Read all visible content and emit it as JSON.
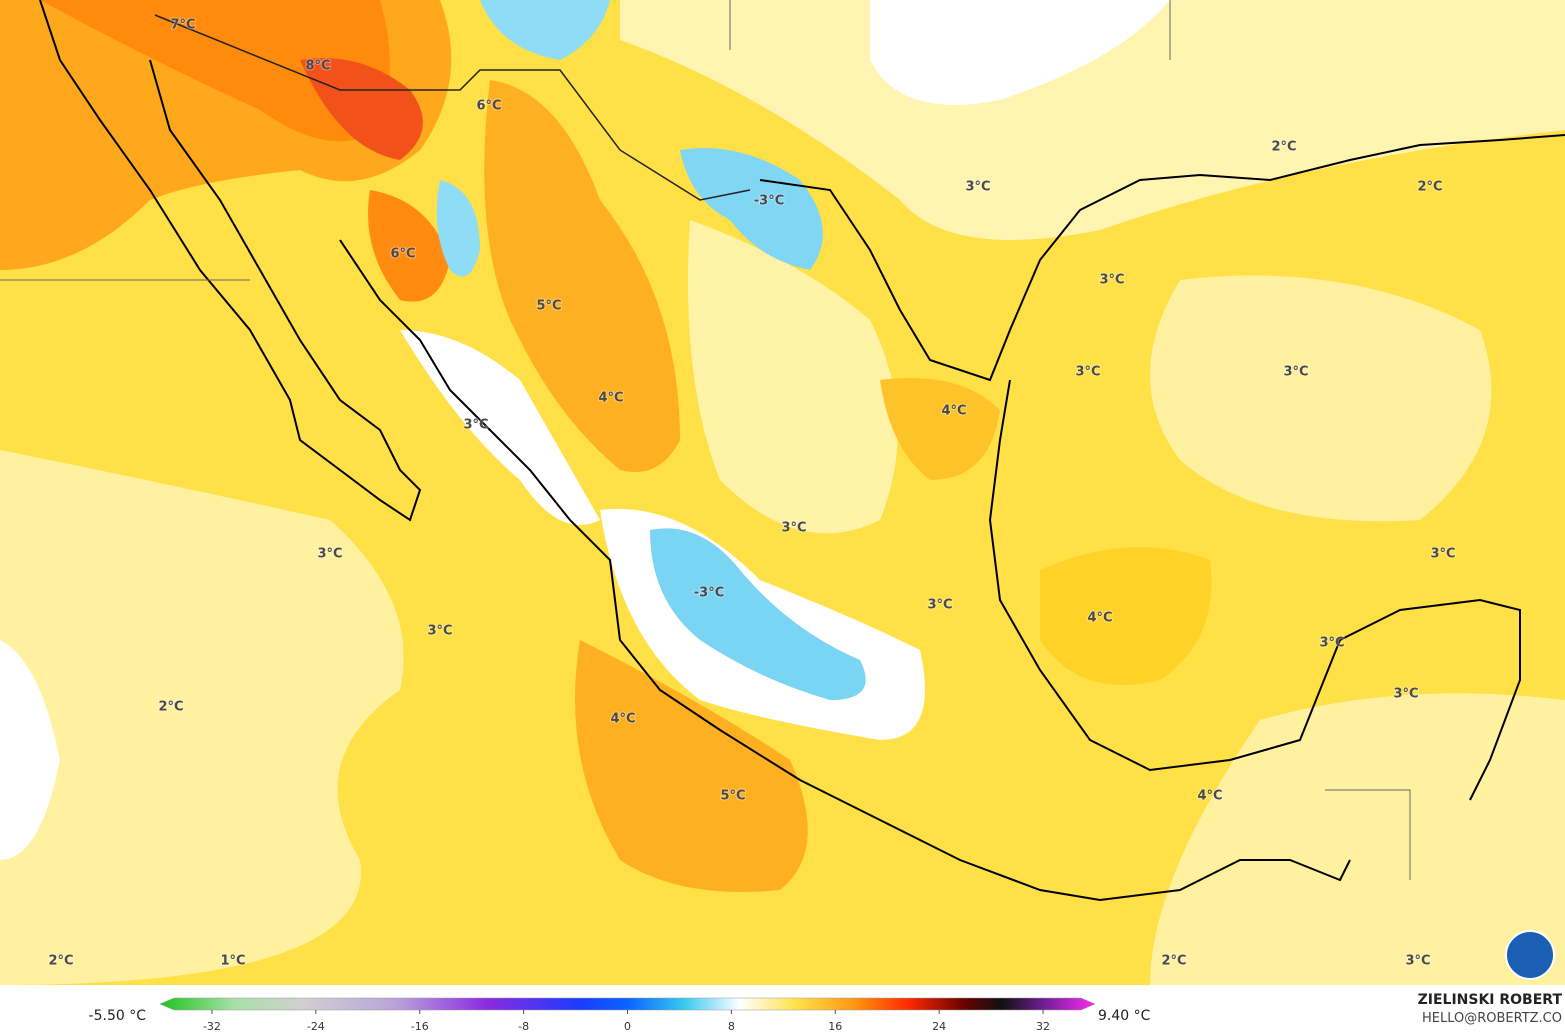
{
  "map": {
    "labels": [
      "7°C",
      "8°C",
      "6°C",
      "-3°C",
      "3°C",
      "2°C",
      "2°C",
      "6°C",
      "3°C",
      "5°C",
      "3°C",
      "3°C",
      "4°C",
      "4°C",
      "3°C",
      "3°C",
      "3°C",
      "3°C",
      "-3°C",
      "3°C",
      "4°C",
      "3°C",
      "3°C",
      "3°C",
      "2°C",
      "4°C",
      "5°C",
      "4°C",
      "2°C",
      "1°C",
      "2°C",
      "3°C"
    ],
    "colorbar": {
      "min_label": "-5.50 °C",
      "max_label": "9.40 °C",
      "lim": [
        -36,
        36
      ],
      "ticks": [
        -32,
        -24,
        -16,
        -8,
        0,
        8,
        16,
        24,
        32
      ]
    },
    "credit": {
      "name": "ZIELINSKI ROBERT",
      "email": "HELLO@ROBERTZ.CO"
    }
  }
}
